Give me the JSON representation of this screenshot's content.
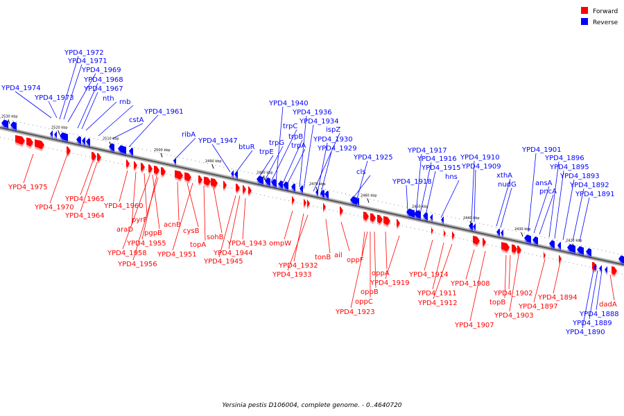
{
  "legend": [
    {
      "label": "Forward",
      "color": "#ff0000"
    },
    {
      "label": "Reverse",
      "color": "#0000ff"
    }
  ],
  "caption": "Yersinia pestis D106004, complete genome. - 0..4640720",
  "ticks": [
    "2530 kbp",
    "2520 kbp",
    "2510 kbp",
    "2500 kbp",
    "2490 kbp",
    "2480 kbp",
    "2470 kbp",
    "2460 kbp",
    "2450 kbp",
    "2440 kbp",
    "2430 kbp",
    "2420 kbp"
  ],
  "reverse_genes": [
    "YPD4_1974",
    "YPD4_1973",
    "YPD4_1972",
    "YPD4_1971",
    "YPD4_1969",
    "YPD4_1968",
    "YPD4_1967",
    "nth",
    "rnb",
    "cstA",
    "YPD4_1961",
    "ribA",
    "YPD4_1947",
    "btuR",
    "trpE",
    "trpG",
    "trpC",
    "YPD4_1940",
    "trpB",
    "trpA",
    "YPD4_1936",
    "YPD4_1934",
    "ispZ",
    "YPD4_1930",
    "YPD4_1929",
    "cls",
    "YPD4_1925",
    "YPD4_1918",
    "YPD4_1917",
    "YPD4_1916",
    "YPD4_1915",
    "hns",
    "YPD4_1910",
    "YPD4_1909",
    "xthA",
    "nudG",
    "YPD4_1901",
    "ansA",
    "pncA",
    "YPD4_1896",
    "YPD4_1895",
    "YPD4_1893",
    "YPD4_1892",
    "YPD4_1891"
  ],
  "forward_genes": [
    "YPD4_1975",
    "YPD4_1970",
    "YPD4_1965",
    "YPD4_1964",
    "YPD4_1960",
    "araD",
    "pyrF",
    "pgpB",
    "YPD4_1955",
    "YPD4_1958",
    "YPD4_1956",
    "acnB",
    "cysB",
    "topA",
    "YPD4_1951",
    "sohB",
    "YPD4_1943",
    "YPD4_1944",
    "YPD4_1945",
    "ompW",
    "YPD4_1932",
    "YPD4_1933",
    "tonB",
    "ail",
    "oppF",
    "oppA",
    "YPD4_1919",
    "oppB",
    "oppC",
    "YPD4_1923",
    "YPD4_1914",
    "YPD4_1911",
    "YPD4_1912",
    "YPD4_1908",
    "YPD4_1907",
    "YPD4_1902",
    "topB",
    "YPD4_1903",
    "YPD4_1897",
    "YPD4_1894"
  ],
  "lower_reverse_genes": [
    "YPD4_1888",
    "YPD4_1889",
    "YPD4_1890"
  ],
  "lower_forward_genes": [
    "dadA"
  ]
}
